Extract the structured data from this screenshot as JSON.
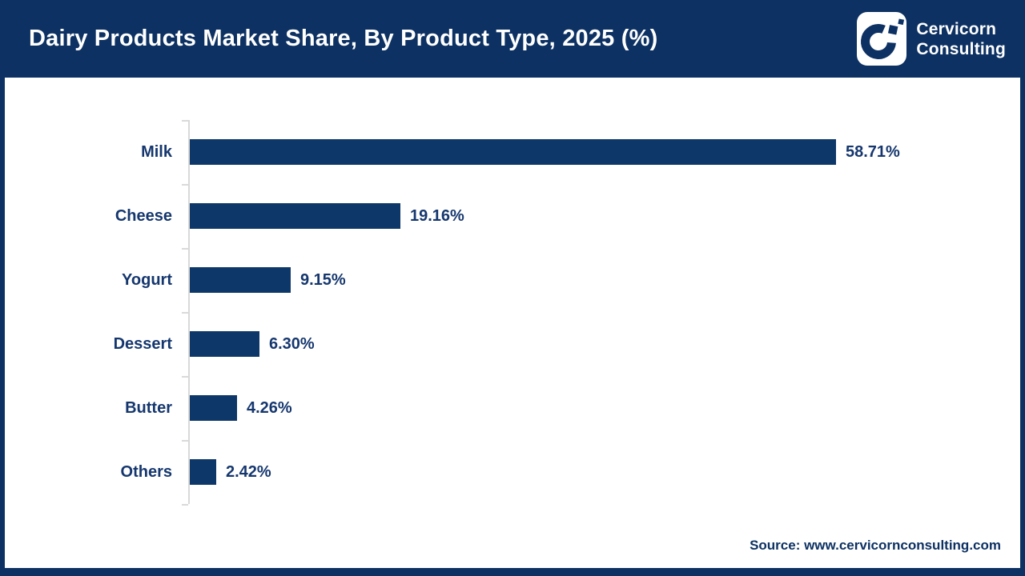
{
  "header": {
    "title": "Dairy Products Market Share, By Product Type, 2025 (%)"
  },
  "logo": {
    "line1": "Cervicorn",
    "line2": "Consulting",
    "icon": "cervicorn-c-mark-icon"
  },
  "chart_data": {
    "type": "bar",
    "orientation": "horizontal",
    "title": "Dairy Products Market Share, By Product Type, 2025 (%)",
    "categories": [
      "Milk",
      "Cheese",
      "Yogurt",
      "Dessert",
      "Butter",
      "Others"
    ],
    "values": [
      58.71,
      19.16,
      9.15,
      6.3,
      4.26,
      2.42
    ],
    "value_labels": [
      "58.71%",
      "19.16%",
      "9.15%",
      "6.30%",
      "4.26%",
      "2.42%"
    ],
    "unit": "%",
    "xlim": [
      0,
      60
    ],
    "grid": false,
    "legend": false,
    "bars_sorted_descending": true
  },
  "footer": {
    "source": "Source: www.cervicornconsulting.com"
  },
  "colors": {
    "navy": "#0d3162",
    "bar": "#0d3768",
    "label_text": "#15376e",
    "axis": "#d9d9d9",
    "background": "#ffffff"
  }
}
